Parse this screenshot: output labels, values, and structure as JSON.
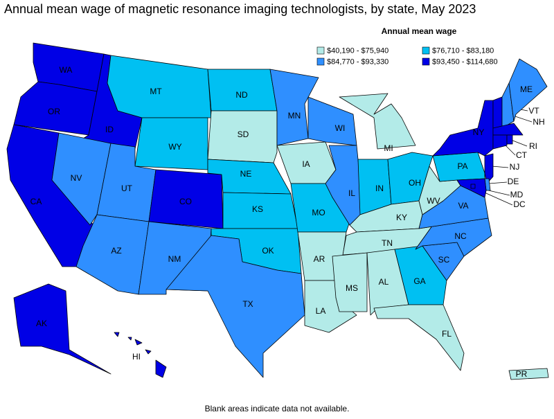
{
  "map": {
    "title": "Annual mean wage of magnetic resonance imaging technologists, by state, May 2023",
    "legend": {
      "title": "Annual mean wage",
      "items": [
        {
          "label": "$40,190 - $75,940",
          "color": "#b3ebe8"
        },
        {
          "label": "$76,710 - $83,180",
          "color": "#00c0f2"
        },
        {
          "label": "$84,770 - $93,330",
          "color": "#2f8fff"
        },
        {
          "label": "$93,450 - $114,680",
          "color": "#0000e6"
        }
      ]
    },
    "states": [
      {
        "label": "WA",
        "color": "#0000e6"
      },
      {
        "label": "OR",
        "color": "#0000e6"
      },
      {
        "label": "ID",
        "color": "#0000e6"
      },
      {
        "label": "CA",
        "color": "#0000e6"
      },
      {
        "label": "NV",
        "color": "#2f8fff"
      },
      {
        "label": "MT",
        "color": "#00c0f2"
      },
      {
        "label": "WY",
        "color": "#00c0f2"
      },
      {
        "label": "UT",
        "color": "#2f8fff"
      },
      {
        "label": "AZ",
        "color": "#2f8fff"
      },
      {
        "label": "CO",
        "color": "#0000e6"
      },
      {
        "label": "NM",
        "color": "#2f8fff"
      },
      {
        "label": "ND",
        "color": "#00c0f2"
      },
      {
        "label": "SD",
        "color": "#b3ebe8"
      },
      {
        "label": "NE",
        "color": "#00c0f2"
      },
      {
        "label": "KS",
        "color": "#00c0f2"
      },
      {
        "label": "OK",
        "color": "#00c0f2"
      },
      {
        "label": "TX",
        "color": "#2f8fff"
      },
      {
        "label": "MN",
        "color": "#2f8fff"
      },
      {
        "label": "IA",
        "color": "#b3ebe8"
      },
      {
        "label": "MO",
        "color": "#00c0f2"
      },
      {
        "label": "AR",
        "color": "#b3ebe8"
      },
      {
        "label": "LA",
        "color": "#b3ebe8"
      },
      {
        "label": "WI",
        "color": "#2f8fff"
      },
      {
        "label": "IL",
        "color": "#2f8fff"
      },
      {
        "label": "MI",
        "color": "#b3ebe8"
      },
      {
        "label": "IN",
        "color": "#00c0f2"
      },
      {
        "label": "OH",
        "color": "#00c0f2"
      },
      {
        "label": "KY",
        "color": "#b3ebe8"
      },
      {
        "label": "TN",
        "color": "#b3ebe8"
      },
      {
        "label": "MS",
        "color": "#b3ebe8"
      },
      {
        "label": "AL",
        "color": "#b3ebe8"
      },
      {
        "label": "GA",
        "color": "#00c0f2"
      },
      {
        "label": "FL",
        "color": "#b3ebe8"
      },
      {
        "label": "SC",
        "color": "#2f8fff"
      },
      {
        "label": "NC",
        "color": "#2f8fff"
      },
      {
        "label": "VA",
        "color": "#2f8fff"
      },
      {
        "label": "WV",
        "color": "#b3ebe8"
      },
      {
        "label": "PA",
        "color": "#00c0f2"
      },
      {
        "label": "NY",
        "color": "#0000e6"
      },
      {
        "label": "VT",
        "color": "#0000e6"
      },
      {
        "label": "NH",
        "color": "#2f8fff"
      },
      {
        "label": "ME",
        "color": "#2f8fff"
      },
      {
        "label": null,
        "color": "#0000e6"
      },
      {
        "label": "CT",
        "color": "#0000e6"
      },
      {
        "label": "RI",
        "color": "#0000e6"
      },
      {
        "label": "NJ",
        "color": "#0000e6"
      },
      {
        "label": "DE",
        "color": "#2f8fff"
      },
      {
        "label": "MD",
        "color": "#0000e6"
      },
      {
        "label": "DC",
        "color": "#0000e6"
      },
      {
        "label": "AK",
        "color": "#0000e6"
      },
      {
        "label": "HI",
        "color": "#0000e6"
      },
      {
        "label": "PR",
        "color": "#b3ebe8"
      }
    ],
    "footnote": "Blank areas indicate data not available."
  }
}
